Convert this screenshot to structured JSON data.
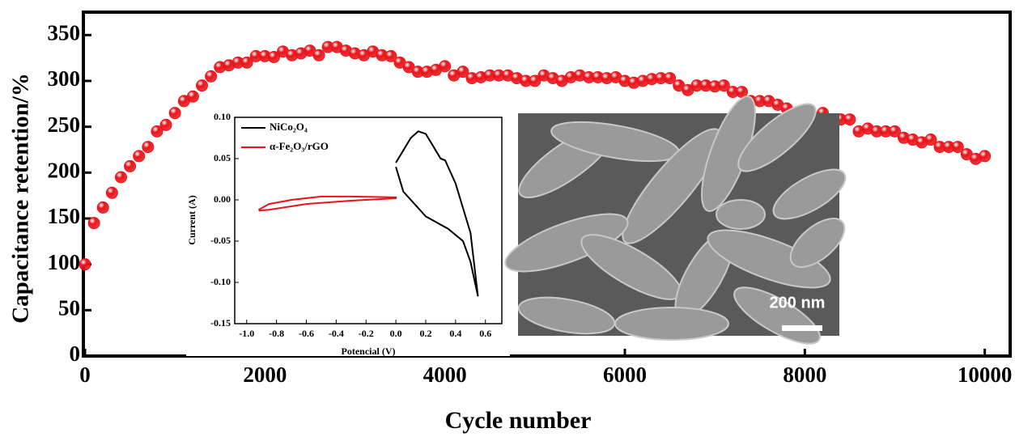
{
  "chart_data": [
    {
      "type": "scatter",
      "x_label": "Cycle number",
      "y_label": "Capacitance retention/%",
      "color": "#e8141a",
      "x": [
        0,
        100,
        200,
        300,
        400,
        500,
        600,
        700,
        800,
        900,
        1000,
        1100,
        1200,
        1300,
        1400,
        1500,
        1600,
        1700,
        1800,
        1900,
        2000,
        2100,
        2200,
        2300,
        2400,
        2500,
        2600,
        2700,
        2800,
        2900,
        3000,
        3100,
        3200,
        3300,
        3400,
        3500,
        3600,
        3700,
        3800,
        3900,
        4000,
        4100,
        4200,
        4300,
        4400,
        4500,
        4600,
        4700,
        4800,
        4900,
        5000,
        5100,
        5200,
        5300,
        5400,
        5500,
        5600,
        5700,
        5800,
        5900,
        6000,
        6100,
        6200,
        6300,
        6400,
        6500,
        6600,
        6700,
        6800,
        6900,
        7000,
        7100,
        7200,
        7300,
        7400,
        7500,
        7600,
        7700,
        7800,
        7900,
        8000,
        8100,
        8200,
        8300,
        8400,
        8500,
        8600,
        8700,
        8800,
        8900,
        9000,
        9100,
        9200,
        9300,
        9400,
        9500,
        9600,
        9700,
        9800,
        9900,
        10000
      ],
      "values": [
        100,
        145,
        162,
        178,
        195,
        207,
        218,
        228,
        245,
        252,
        265,
        278,
        283,
        295,
        305,
        315,
        317,
        320,
        320,
        327,
        327,
        326,
        332,
        328,
        330,
        333,
        328,
        337,
        337,
        333,
        330,
        328,
        332,
        328,
        327,
        320,
        315,
        310,
        310,
        312,
        316,
        306,
        310,
        303,
        304,
        306,
        306,
        306,
        303,
        300,
        300,
        306,
        303,
        300,
        304,
        306,
        304,
        304,
        303,
        304,
        300,
        298,
        300,
        302,
        303,
        303,
        295,
        290,
        295,
        295,
        294,
        295,
        288,
        288,
        278,
        278,
        278,
        274,
        270,
        265,
        265,
        260,
        265,
        258,
        258,
        258,
        245,
        248,
        245,
        245,
        245,
        238,
        236,
        233,
        236,
        228,
        228,
        228,
        220,
        215,
        218
      ],
      "xlim": [
        0,
        10300
      ],
      "ylim": [
        0,
        375
      ],
      "xticks": [
        0,
        2000,
        4000,
        6000,
        8000,
        10000
      ],
      "yticks": [
        0,
        50,
        100,
        150,
        200,
        250,
        300,
        350
      ]
    },
    {
      "type": "line",
      "x_label": "Potencial (V)",
      "y_label": "Current (A)",
      "series": [
        {
          "name": "NiCo₂O₄",
          "color": "#000000",
          "x": [
            0,
            0.05,
            0.1,
            0.15,
            0.2,
            0.25,
            0.3,
            0.33,
            0.4,
            0.5,
            0.55,
            0.5,
            0.45,
            0.35,
            0.2,
            0.05,
            0
          ],
          "values": [
            0.045,
            0.06,
            0.075,
            0.083,
            0.08,
            0.065,
            0.05,
            0.048,
            0.02,
            -0.04,
            -0.117,
            -0.075,
            -0.05,
            -0.035,
            -0.02,
            0.01,
            0.04
          ]
        },
        {
          "name": "α-Fe₂O₃/rGO",
          "color": "#e8141a",
          "x": [
            -0.92,
            -0.85,
            -0.7,
            -0.5,
            -0.3,
            0,
            0,
            -0.3,
            -0.6,
            -0.85,
            -0.92
          ],
          "values": [
            -0.012,
            -0.005,
            0,
            0.004,
            0.004,
            0.003,
            0.002,
            -0.001,
            -0.005,
            -0.012,
            -0.013
          ]
        }
      ],
      "xlim": [
        -1.08,
        0.71
      ],
      "ylim": [
        -0.15,
        0.1
      ],
      "xticks": [
        {
          "value": -1,
          "label": "-1.0"
        },
        -0.8,
        -0.6,
        -0.4,
        -0.2,
        {
          "value": 0,
          "label": "0.0"
        },
        0.2,
        0.4,
        0.6
      ],
      "yticks": [
        -0.15,
        {
          "value": -0.1,
          "label": "-0.10"
        },
        -0.05,
        {
          "value": 0,
          "label": "0.00"
        },
        0.05,
        {
          "value": 0.1,
          "label": "0.10"
        }
      ]
    }
  ],
  "sem_image": {
    "scale_label": "200 nm"
  }
}
